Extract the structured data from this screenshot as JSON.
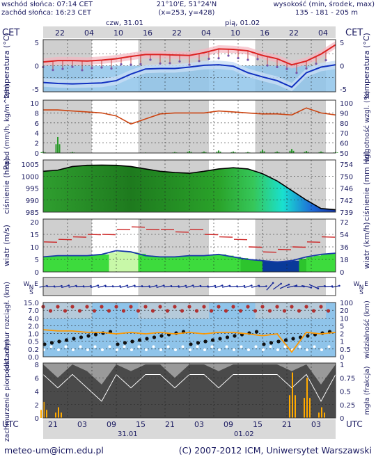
{
  "header": {
    "sunrise": "wschód słońca: 07:14 CET",
    "sunset": "zachód słońca: 16:23 CET",
    "coords": "21°10'E, 51°24'N",
    "grid": "(x=253, y=428)",
    "height_label": "wysokość (min, środek, max)",
    "height_values": "135 - 181 - 205 m"
  },
  "time_axis": {
    "cet_label": "CET",
    "utc_label": "UTC",
    "day1_top": "czw, 31.01",
    "day2_top": "pią, 01.02",
    "cet_ticks": [
      "22",
      "04",
      "10",
      "16",
      "22",
      "04",
      "10",
      "16",
      "22",
      "04"
    ],
    "utc_ticks": [
      "21",
      "03",
      "09",
      "15",
      "21",
      "03",
      "09",
      "15",
      "21",
      "03"
    ],
    "date1": "31.01",
    "date2": "01.02"
  },
  "footer": {
    "email": "meteo-um@icm.edu.pl",
    "copyright": "(C) 2007-2012 ICM, Uniwersytet Warszawski"
  },
  "colors": {
    "plot_bg": "#8fc4ea",
    "night": "#cfcfcf",
    "green": "#33cc33",
    "temp_line": "#dd2222",
    "dew_line": "#1030c0",
    "precip_bar": "#2a9a2a",
    "humidity_line": "#cc4411",
    "wind_line": "#1a3aa8",
    "gust_line": "#cc2222",
    "vis_line": "#ff9900",
    "cloud_dark": "#555555",
    "fog_bar": "#ffaa00"
  },
  "chart_data": [
    {
      "type": "line",
      "name": "temperature",
      "ylabel_left": "temperatura (°C)",
      "ylabel_right": "temperatura (°C)",
      "ylim": [
        -5,
        5
      ],
      "yticks": [
        -5,
        0,
        5
      ],
      "x": [
        0,
        3,
        6,
        9,
        12,
        15,
        18,
        21,
        24,
        27,
        30,
        33,
        36,
        39,
        42,
        45,
        48,
        51,
        54,
        57,
        60
      ],
      "series": [
        {
          "values": [
            0.8,
            1.1,
            1.1,
            1.0,
            1.2,
            1.5,
            2.0,
            2.4,
            2.4,
            2.3,
            2.2,
            2.8,
            3.6,
            3.5,
            3.2,
            2.2,
            1.5,
            0.2,
            1.0,
            2.5,
            4.5
          ]
        },
        {
          "values": [
            -3.6,
            -3.8,
            -3.9,
            -3.8,
            -3.7,
            -3.2,
            -1.8,
            -0.7,
            -0.6,
            -0.6,
            -0.3,
            0.1,
            0.2,
            -0.1,
            -1.5,
            -2.4,
            -3.2,
            -4.6,
            -1.5,
            -0.3,
            0.2
          ]
        }
      ]
    },
    {
      "type": "bar",
      "name": "precipitation",
      "ylabel_left": "opad (mm/h, kg/m^2/h)",
      "ylabel_right": "wilgotność wzgl. (%)",
      "ylim_left": [
        0,
        10
      ],
      "yticks_left": [
        0,
        2,
        4,
        6,
        8,
        10
      ],
      "ylim_right": [
        50,
        100
      ],
      "yticks_right": [
        50,
        60,
        70,
        80,
        90,
        100
      ],
      "x": [
        0,
        3,
        6,
        9,
        12,
        15,
        18,
        21,
        24,
        27,
        30,
        33,
        36,
        39,
        42,
        45,
        48,
        51,
        54,
        57,
        60
      ],
      "precip_values": [
        0.3,
        3.2,
        0.2,
        0,
        0,
        0,
        0,
        0.1,
        0,
        0.2,
        0.4,
        0.3,
        0.5,
        0.3,
        0.2,
        0.6,
        0.3,
        0.8,
        0.4,
        0.3,
        0.2
      ],
      "humidity_values": [
        93,
        93,
        92,
        91,
        90,
        87,
        79,
        84,
        89,
        90,
        90,
        90,
        92,
        91,
        90,
        89,
        89,
        88,
        95,
        90,
        88
      ]
    },
    {
      "type": "area",
      "name": "pressure",
      "ylabel_left": "ciśnienie (hPa)",
      "ylabel_right": "ciśnienie (mm Hg)",
      "ylim_left": [
        985,
        1005
      ],
      "yticks_left": [
        985,
        990,
        995,
        1000,
        1005
      ],
      "yticks_right": [
        739,
        742,
        746,
        750,
        754
      ],
      "x": [
        0,
        3,
        6,
        9,
        12,
        15,
        18,
        21,
        24,
        27,
        30,
        33,
        36,
        39,
        42,
        45,
        48,
        51,
        54,
        57,
        60
      ],
      "values": [
        1002,
        1002.5,
        1004,
        1004.5,
        1004.6,
        1004.5,
        1004,
        1003,
        1002,
        1001.5,
        1001.2,
        1002,
        1003,
        1003.5,
        1003,
        1001,
        998,
        994,
        990,
        986.5,
        986
      ]
    },
    {
      "type": "line",
      "name": "wind",
      "ylabel_left": "wiatr (m/s)",
      "ylabel_right": "wiatr (km/h)",
      "ylim_left": [
        0,
        20
      ],
      "yticks_left": [
        0,
        5,
        10,
        15,
        20
      ],
      "yticks_right": [
        0,
        18,
        36,
        54,
        72
      ],
      "x": [
        0,
        3,
        6,
        9,
        12,
        15,
        18,
        21,
        24,
        27,
        30,
        33,
        36,
        39,
        42,
        45,
        48,
        51,
        54,
        57,
        60
      ],
      "series": [
        {
          "values": [
            6,
            6.5,
            6.5,
            6.5,
            7,
            8.5,
            8,
            6.5,
            6,
            6,
            6.5,
            6.5,
            7,
            6,
            5,
            4.5,
            4,
            4.5,
            6,
            7,
            7.5
          ]
        },
        {
          "values": [
            12,
            13,
            14,
            15,
            15,
            17,
            18,
            17,
            17,
            16,
            17,
            15,
            14,
            13,
            10,
            8,
            9,
            10,
            12,
            14,
            14
          ]
        }
      ]
    },
    {
      "type": "scatter",
      "name": "cloud_base_visibility",
      "ylabel_left": "podst. chmur rozciągł. (km)",
      "ylabel_right": "widzialność (km)",
      "ylim_left": [
        0,
        15
      ],
      "yticks_left": [
        "0.0",
        "0.2",
        "0.5",
        "1.0",
        "2.0",
        "4.0",
        "7.0",
        "15.0"
      ],
      "yticks_right": [
        "0",
        "0.5",
        "1",
        "2",
        "5",
        "10",
        "20",
        "100"
      ],
      "x": [
        0,
        3,
        6,
        9,
        12,
        15,
        18,
        21,
        24,
        27,
        30,
        33,
        36,
        39,
        42,
        45,
        48,
        51,
        54,
        57,
        60
      ],
      "visibility": [
        9,
        8,
        8,
        7,
        7,
        6,
        7,
        6,
        7,
        6,
        7,
        6,
        7,
        7,
        6,
        5,
        6,
        0.5,
        7,
        6,
        7
      ]
    },
    {
      "type": "area",
      "name": "cloud_cover_fog",
      "ylabel_left": "zachmurzenie pion. (oktanty)",
      "ylabel_right": "mgła (frakcja)",
      "ylim_left": [
        0,
        8
      ],
      "yticks_left": [
        0,
        2,
        4,
        6,
        8
      ],
      "ylim_right": [
        0,
        1
      ],
      "yticks_right": [
        "0",
        "0.25",
        "0.5",
        "0.75",
        "1"
      ],
      "x": [
        0,
        3,
        6,
        9,
        12,
        15,
        18,
        21,
        24,
        27,
        30,
        33,
        36,
        39,
        42,
        45,
        48,
        51,
        54,
        57,
        60
      ],
      "cloud_values": [
        8,
        6,
        8,
        7,
        5,
        8,
        7,
        8,
        8,
        6,
        8,
        8,
        7,
        8,
        8,
        8,
        8,
        7,
        8,
        5,
        8
      ],
      "fog_values": [
        0.3,
        0.2,
        0,
        0,
        0,
        0,
        0,
        0,
        0,
        0,
        0,
        0,
        0,
        0,
        0,
        0,
        0,
        0.85,
        0.75,
        0.2,
        0
      ]
    }
  ]
}
